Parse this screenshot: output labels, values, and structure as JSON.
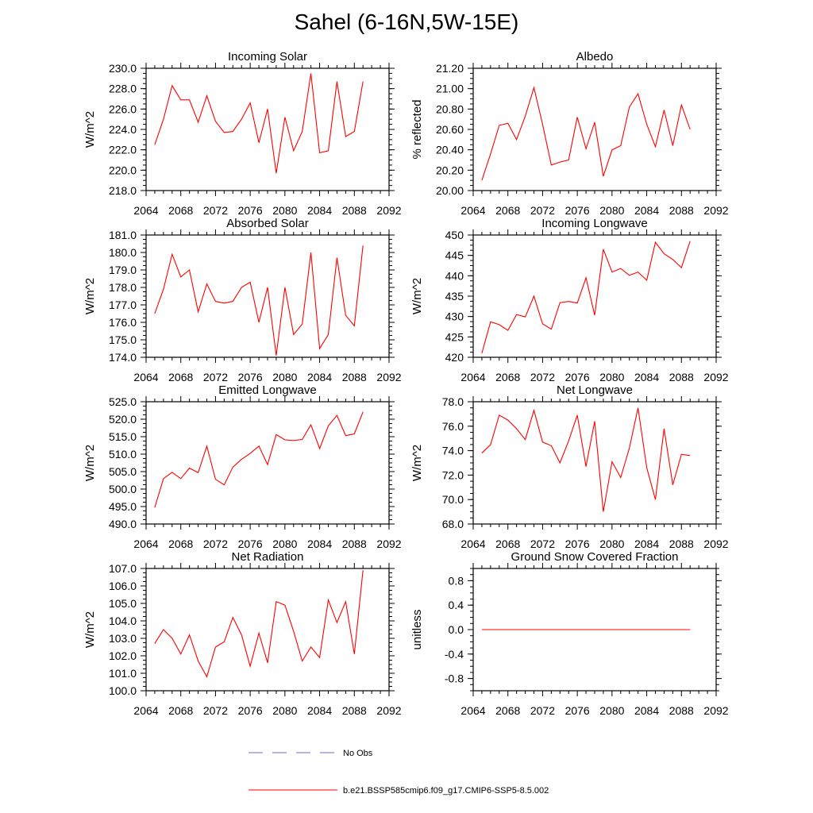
{
  "title": "Sahel (6-16N,5W-15E)",
  "chart_data": [
    {
      "type": "line",
      "title": "Incoming Solar",
      "ylabel": "W/m^2",
      "xlim": [
        2064,
        2092
      ],
      "ylim": [
        218,
        230
      ],
      "xticks": [
        "2064",
        "2068",
        "2072",
        "2076",
        "2080",
        "2084",
        "2088",
        "2092"
      ],
      "yticks": [
        "218.0",
        "220.0",
        "222.0",
        "224.0",
        "226.0",
        "228.0",
        "230.0"
      ],
      "x": [
        2065,
        2066,
        2067,
        2068,
        2069,
        2070,
        2071,
        2072,
        2073,
        2074,
        2075,
        2076,
        2077,
        2078,
        2079,
        2080,
        2081,
        2082,
        2083,
        2084,
        2085,
        2086,
        2087,
        2088,
        2089
      ],
      "series": [
        {
          "values": [
            222.5,
            225.0,
            228.3,
            226.9,
            226.9,
            224.7,
            227.3,
            224.8,
            223.7,
            223.8,
            225.0,
            226.6,
            222.7,
            226.0,
            219.7,
            225.2,
            221.9,
            223.8,
            229.5,
            221.7,
            221.9,
            228.7,
            223.3,
            223.8,
            228.7
          ]
        }
      ]
    },
    {
      "type": "line",
      "title": "Albedo",
      "ylabel": "% reflected",
      "xlim": [
        2064,
        2092
      ],
      "ylim": [
        20.0,
        21.2
      ],
      "xticks": [
        "2064",
        "2068",
        "2072",
        "2076",
        "2080",
        "2084",
        "2088",
        "2092"
      ],
      "yticks": [
        "20.00",
        "20.20",
        "20.40",
        "20.60",
        "20.80",
        "21.00",
        "21.20"
      ],
      "x": [
        2065,
        2066,
        2067,
        2068,
        2069,
        2070,
        2071,
        2072,
        2073,
        2074,
        2075,
        2076,
        2077,
        2078,
        2079,
        2080,
        2081,
        2082,
        2083,
        2084,
        2085,
        2086,
        2087,
        2088,
        2089
      ],
      "series": [
        {
          "values": [
            20.1,
            20.36,
            20.64,
            20.66,
            20.5,
            20.73,
            21.01,
            20.65,
            20.25,
            20.28,
            20.3,
            20.72,
            20.41,
            20.67,
            20.14,
            20.4,
            20.44,
            20.82,
            20.95,
            20.65,
            20.43,
            20.79,
            20.44,
            20.84,
            20.6
          ]
        }
      ]
    },
    {
      "type": "line",
      "title": "Absorbed Solar",
      "ylabel": "W/m^2",
      "xlim": [
        2064,
        2092
      ],
      "ylim": [
        174,
        181
      ],
      "xticks": [
        "2064",
        "2068",
        "2072",
        "2076",
        "2080",
        "2084",
        "2088",
        "2092"
      ],
      "yticks": [
        "174.0",
        "175.0",
        "176.0",
        "177.0",
        "178.0",
        "179.0",
        "180.0",
        "181.0"
      ],
      "x": [
        2065,
        2066,
        2067,
        2068,
        2069,
        2070,
        2071,
        2072,
        2073,
        2074,
        2075,
        2076,
        2077,
        2078,
        2079,
        2080,
        2081,
        2082,
        2083,
        2084,
        2085,
        2086,
        2087,
        2088,
        2089
      ],
      "series": [
        {
          "values": [
            176.5,
            177.9,
            179.9,
            178.6,
            179.0,
            176.6,
            178.2,
            177.2,
            177.1,
            177.2,
            178.0,
            178.3,
            176.0,
            178.0,
            174.1,
            178.0,
            175.3,
            175.9,
            180.0,
            174.5,
            175.3,
            179.7,
            176.4,
            175.8,
            180.4
          ]
        }
      ]
    },
    {
      "type": "line",
      "title": "Incoming Longwave",
      "ylabel": "W/m^2",
      "xlim": [
        2064,
        2092
      ],
      "ylim": [
        420,
        450
      ],
      "xticks": [
        "2064",
        "2068",
        "2072",
        "2076",
        "2080",
        "2084",
        "2088",
        "2092"
      ],
      "yticks": [
        "420",
        "425",
        "430",
        "435",
        "440",
        "445",
        "450"
      ],
      "x": [
        2065,
        2066,
        2067,
        2068,
        2069,
        2070,
        2071,
        2072,
        2073,
        2074,
        2075,
        2076,
        2077,
        2078,
        2079,
        2080,
        2081,
        2082,
        2083,
        2084,
        2085,
        2086,
        2087,
        2088,
        2089
      ],
      "series": [
        {
          "values": [
            421.0,
            428.7,
            428.0,
            426.6,
            430.5,
            429.9,
            435.0,
            428.2,
            426.9,
            433.4,
            433.7,
            433.3,
            439.5,
            430.3,
            446.5,
            440.9,
            441.8,
            440.1,
            440.9,
            438.9,
            448.2,
            445.4,
            444.0,
            442.0,
            448.5
          ]
        }
      ]
    },
    {
      "type": "line",
      "title": "Emitted Longwave",
      "ylabel": "W/m^2",
      "xlim": [
        2064,
        2092
      ],
      "ylim": [
        490,
        525
      ],
      "xticks": [
        "2064",
        "2068",
        "2072",
        "2076",
        "2080",
        "2084",
        "2088",
        "2092"
      ],
      "yticks": [
        "490.0",
        "495.0",
        "500.0",
        "505.0",
        "510.0",
        "515.0",
        "520.0",
        "525.0"
      ],
      "x": [
        2065,
        2066,
        2067,
        2068,
        2069,
        2070,
        2071,
        2072,
        2073,
        2074,
        2075,
        2076,
        2077,
        2078,
        2079,
        2080,
        2081,
        2082,
        2083,
        2084,
        2085,
        2086,
        2087,
        2088,
        2089
      ],
      "series": [
        {
          "values": [
            494.7,
            503.0,
            504.8,
            503.0,
            506.0,
            504.7,
            512.3,
            502.8,
            501.2,
            506.3,
            508.5,
            510.2,
            512.3,
            507.0,
            515.6,
            514.1,
            513.9,
            514.2,
            518.4,
            511.6,
            518.1,
            521.1,
            515.3,
            515.8,
            522.1
          ]
        }
      ]
    },
    {
      "type": "line",
      "title": "Net Longwave",
      "ylabel": "W/m^2",
      "xlim": [
        2064,
        2092
      ],
      "ylim": [
        68,
        78
      ],
      "xticks": [
        "2064",
        "2068",
        "2072",
        "2076",
        "2080",
        "2084",
        "2088",
        "2092"
      ],
      "yticks": [
        "68.0",
        "70.0",
        "72.0",
        "74.0",
        "76.0",
        "78.0"
      ],
      "x": [
        2065,
        2066,
        2067,
        2068,
        2069,
        2070,
        2071,
        2072,
        2073,
        2074,
        2075,
        2076,
        2077,
        2078,
        2079,
        2080,
        2081,
        2082,
        2083,
        2084,
        2085,
        2086,
        2087,
        2088,
        2089
      ],
      "series": [
        {
          "values": [
            73.8,
            74.5,
            76.9,
            76.5,
            75.8,
            74.9,
            77.3,
            74.7,
            74.4,
            73.0,
            74.8,
            76.9,
            72.7,
            76.4,
            69.0,
            73.1,
            71.8,
            74.2,
            77.5,
            72.6,
            70.0,
            75.8,
            71.2,
            73.7,
            73.6
          ]
        }
      ]
    },
    {
      "type": "line",
      "title": "Net Radiation",
      "ylabel": "W/m^2",
      "xlim": [
        2064,
        2092
      ],
      "ylim": [
        100,
        107
      ],
      "xticks": [
        "2064",
        "2068",
        "2072",
        "2076",
        "2080",
        "2084",
        "2088",
        "2092"
      ],
      "yticks": [
        "100.0",
        "101.0",
        "102.0",
        "103.0",
        "104.0",
        "105.0",
        "106.0",
        "107.0"
      ],
      "x": [
        2065,
        2066,
        2067,
        2068,
        2069,
        2070,
        2071,
        2072,
        2073,
        2074,
        2075,
        2076,
        2077,
        2078,
        2079,
        2080,
        2081,
        2082,
        2083,
        2084,
        2085,
        2086,
        2087,
        2088,
        2089
      ],
      "series": [
        {
          "values": [
            102.7,
            103.5,
            103.0,
            102.1,
            103.2,
            101.7,
            100.8,
            102.5,
            102.8,
            104.2,
            103.2,
            101.4,
            103.3,
            101.6,
            105.1,
            104.9,
            103.4,
            101.7,
            102.5,
            101.9,
            105.2,
            103.9,
            105.1,
            102.1,
            106.9
          ]
        }
      ]
    },
    {
      "type": "line",
      "title": "Ground Snow Covered Fraction",
      "ylabel": "unitless",
      "xlim": [
        2064,
        2092
      ],
      "ylim": [
        -1.0,
        1.0
      ],
      "xticks": [
        "2064",
        "2068",
        "2072",
        "2076",
        "2080",
        "2084",
        "2088",
        "2092"
      ],
      "yticks": [
        "-0.8",
        "-0.4",
        "0.0",
        "0.4",
        "0.8"
      ],
      "ytick_values": [
        -0.8,
        -0.4,
        0.0,
        0.4,
        0.8
      ],
      "x": [
        2065,
        2066,
        2067,
        2068,
        2069,
        2070,
        2071,
        2072,
        2073,
        2074,
        2075,
        2076,
        2077,
        2078,
        2079,
        2080,
        2081,
        2082,
        2083,
        2084,
        2085,
        2086,
        2087,
        2088,
        2089
      ],
      "series": [
        {
          "values": [
            0,
            0,
            0,
            0,
            0,
            0,
            0,
            0,
            0,
            0,
            0,
            0,
            0,
            0,
            0,
            0,
            0,
            0,
            0,
            0,
            0,
            0,
            0,
            0,
            0
          ]
        }
      ]
    }
  ],
  "legend": {
    "items": [
      {
        "label": "No Obs",
        "color": "#6a6ad0",
        "dash": true
      },
      {
        "label": "b.e21.BSSP585cmip6.f09_g17.CMIP6-SSP5-8.5.002",
        "color": "#ff0000",
        "dash": false
      }
    ]
  },
  "colors": {
    "line": "#ff0000",
    "axis": "#000000"
  }
}
